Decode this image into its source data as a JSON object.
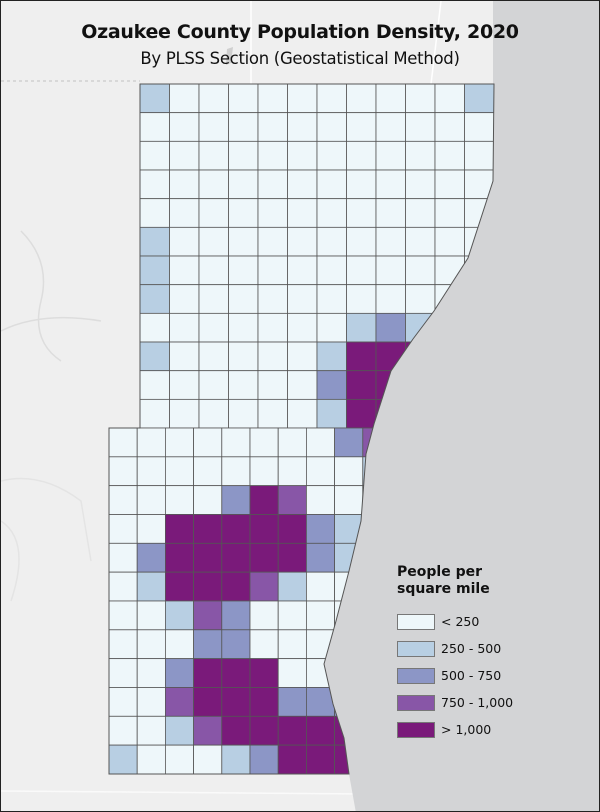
{
  "title": "Ozaukee County Population Density, 2020",
  "subtitle": "By PLSS Section (Geostatistical Method)",
  "legend": {
    "title_line1": "People per",
    "title_line2": "square mile",
    "classes": [
      {
        "label": "< 250",
        "color": "#eef7fa"
      },
      {
        "label": "250 - 500",
        "color": "#b8cfe3"
      },
      {
        "label": "500 - 750",
        "color": "#8c96c6"
      },
      {
        "label": "750 - 1,000",
        "color": "#8856a7"
      },
      {
        "label": "> 1,000",
        "color": "#7a1a7a"
      }
    ]
  },
  "colors": {
    "land": "#efefef",
    "lake": "#d3d4d6",
    "section_border": "#555555"
  },
  "sections": {
    "north_block": [
      "211111111112",
      "111111111111",
      "111111111111",
      "111111111111",
      "111111111111",
      "211111111111",
      "211111111111",
      "211111111111",
      "111111123222",
      "211111255555",
      "111111355555",
      "111111255555"
    ],
    "south_block": [
      "1111111134",
      "1111111112",
      "1111354111",
      "1155555322",
      "1355555322",
      "1255542111",
      "1124311111",
      "1113311111",
      "1135551111",
      "1145553333",
      "1124555555",
      "2111235555"
    ]
  }
}
